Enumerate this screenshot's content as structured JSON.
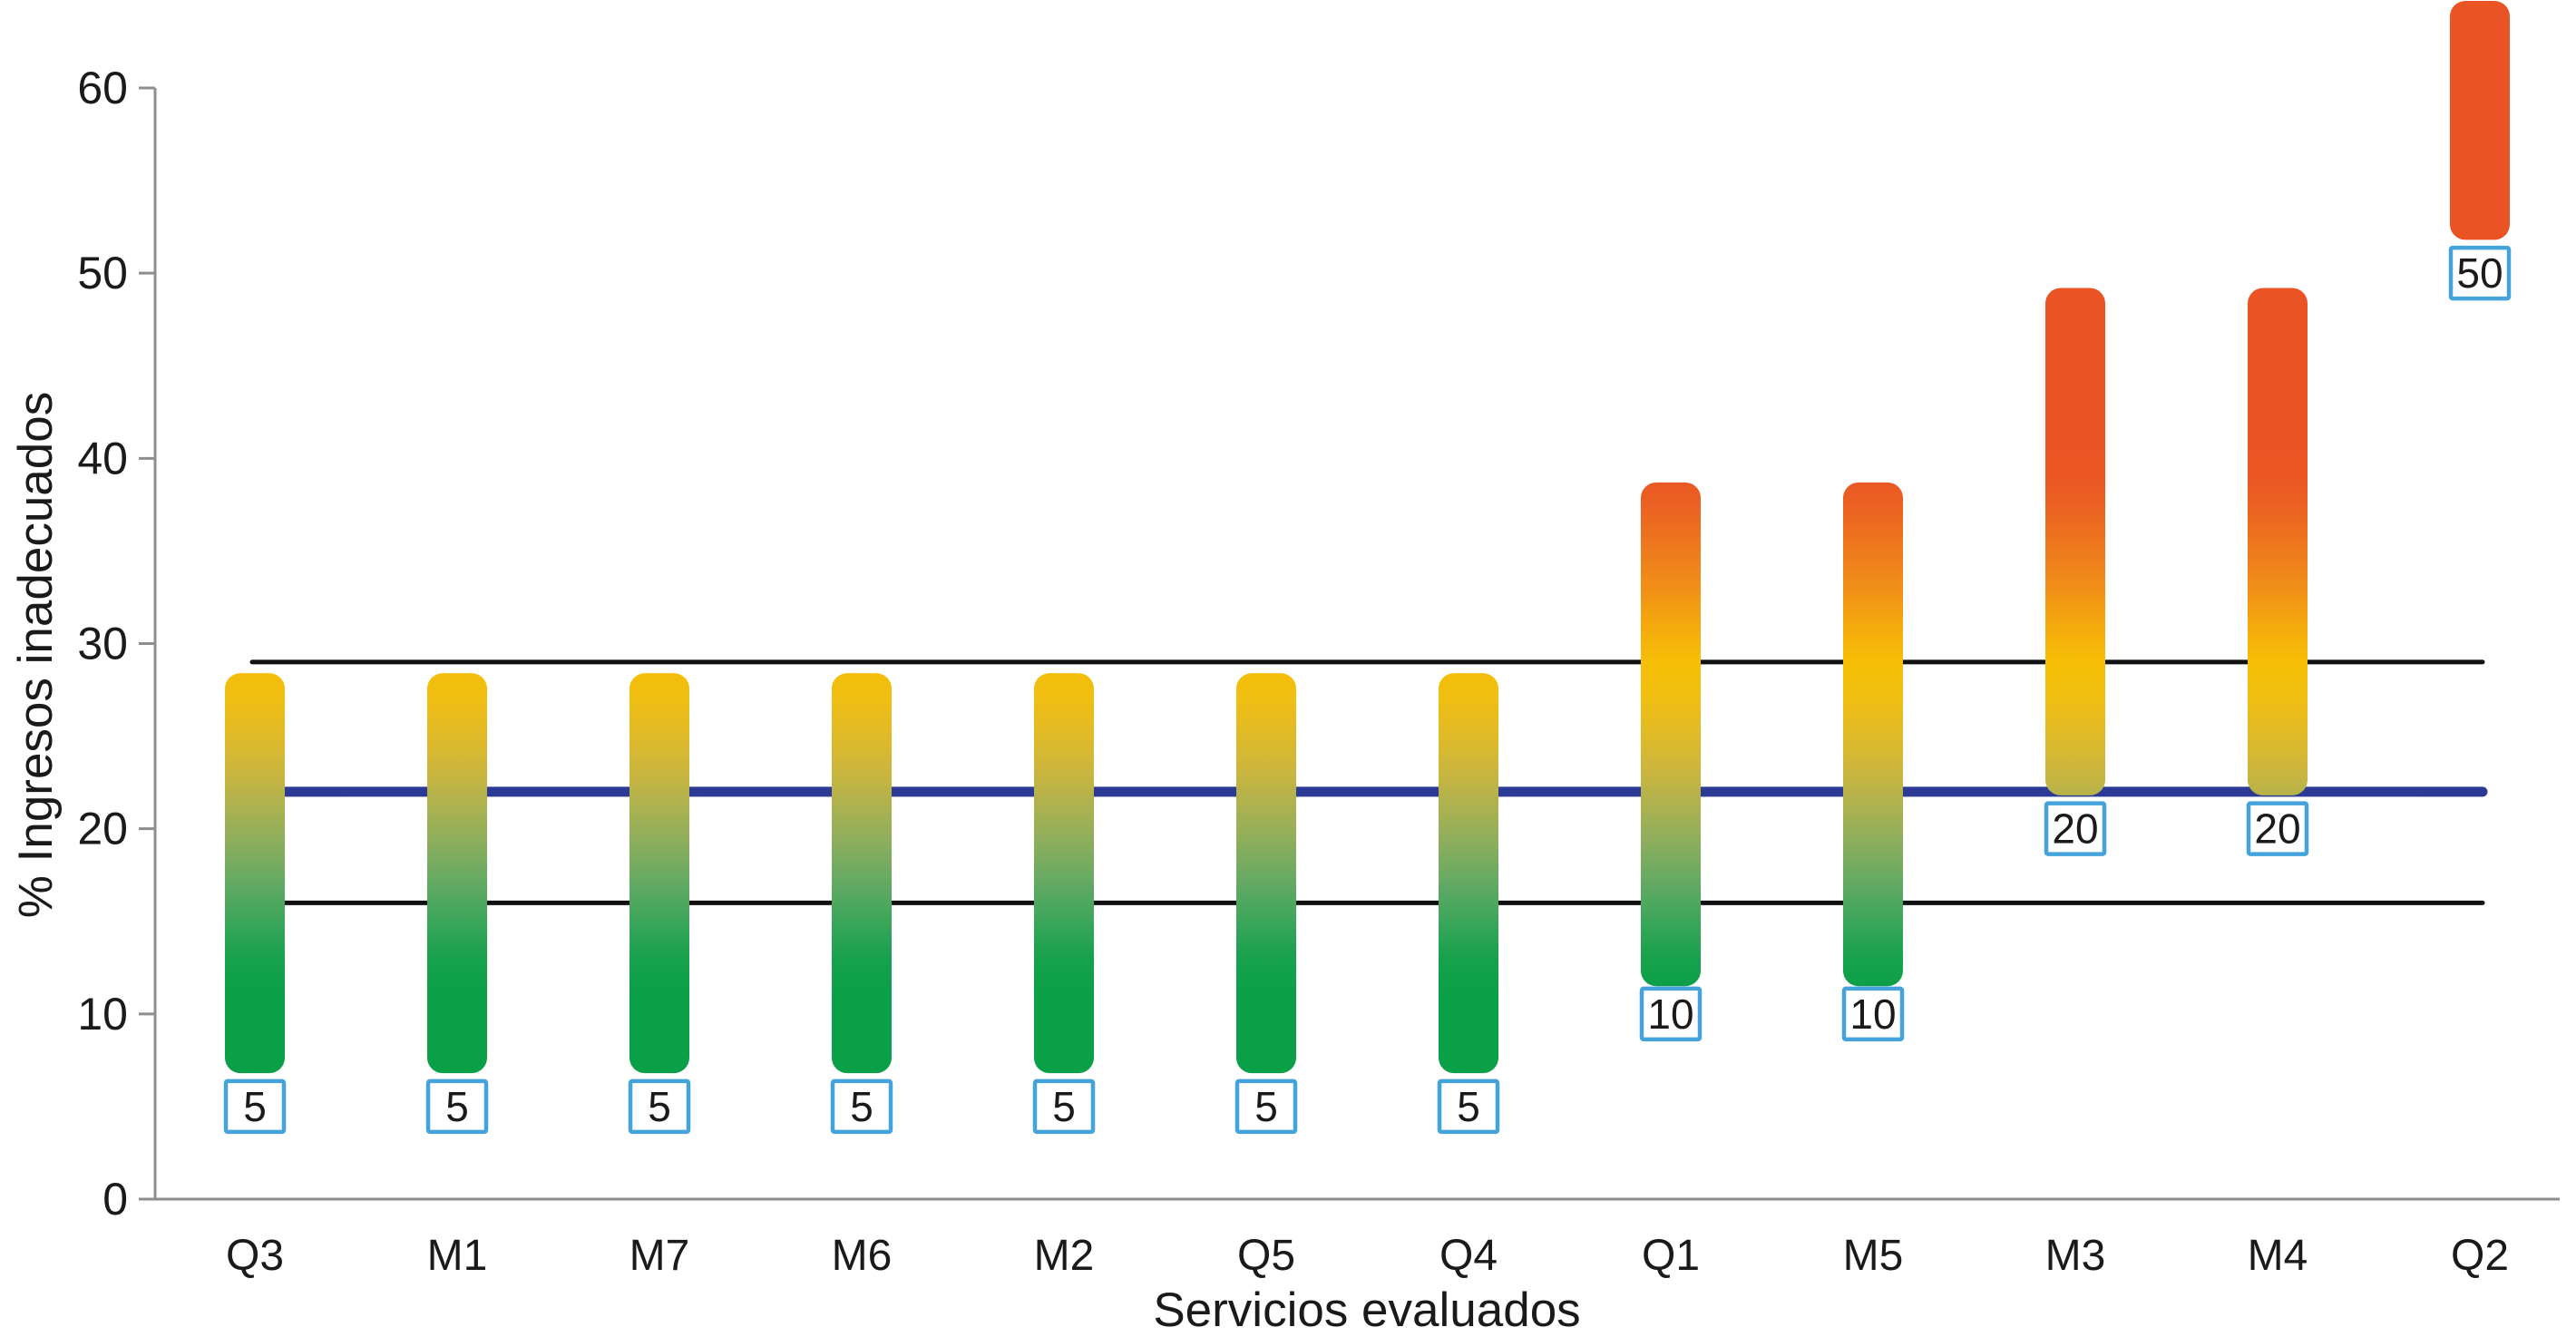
{
  "chart_data": {
    "type": "bar",
    "subtype": "floating-range-bars-with-value-gradient",
    "title": "",
    "xlabel": "Servicios evaluados",
    "ylabel": "% Ingresos inadecuados",
    "categories": [
      "Q3",
      "M1",
      "M7",
      "M6",
      "M2",
      "Q5",
      "Q4",
      "Q1",
      "M5",
      "M3",
      "M4",
      "Q2"
    ],
    "bars": [
      {
        "category": "Q3",
        "label": "5",
        "low": 6.8,
        "high": 28.4,
        "clipped_top": false
      },
      {
        "category": "M1",
        "label": "5",
        "low": 6.8,
        "high": 28.4,
        "clipped_top": false
      },
      {
        "category": "M7",
        "label": "5",
        "low": 6.8,
        "high": 28.4,
        "clipped_top": false
      },
      {
        "category": "M6",
        "label": "5",
        "low": 6.8,
        "high": 28.4,
        "clipped_top": false
      },
      {
        "category": "M2",
        "label": "5",
        "low": 6.8,
        "high": 28.4,
        "clipped_top": false
      },
      {
        "category": "Q5",
        "label": "5",
        "low": 6.8,
        "high": 28.4,
        "clipped_top": false
      },
      {
        "category": "Q4",
        "label": "5",
        "low": 6.8,
        "high": 28.4,
        "clipped_top": false
      },
      {
        "category": "Q1",
        "label": "10",
        "low": 11.5,
        "high": 38.7,
        "clipped_top": false
      },
      {
        "category": "M5",
        "label": "10",
        "low": 11.5,
        "high": 38.7,
        "clipped_top": false
      },
      {
        "category": "M3",
        "label": "20",
        "low": 21.8,
        "high": 49.2,
        "clipped_top": false
      },
      {
        "category": "M4",
        "label": "20",
        "low": 21.8,
        "high": 49.2,
        "clipped_top": false
      },
      {
        "category": "Q2",
        "label": "50",
        "low": 51.8,
        "high": 64.7,
        "clipped_top": true
      }
    ],
    "reference_lines": [
      {
        "name": "upper-limit-line",
        "value": 29,
        "color": "#111111",
        "width": 5
      },
      {
        "name": "mean-line",
        "value": 22,
        "color": "#2B3A94",
        "width": 11
      },
      {
        "name": "lower-limit-line",
        "value": 16,
        "color": "#111111",
        "width": 5
      }
    ],
    "y_axis": {
      "min": 0,
      "max": 65,
      "ticks": [
        0,
        10,
        20,
        30,
        40,
        50,
        60
      ]
    },
    "grid": false,
    "legend": false,
    "colors": {
      "axis": "#8E8E8E",
      "text": "#1A1A1A",
      "label_box_fill": "#FFFFFF",
      "label_box_border": "#44A3DA",
      "bar_gradient_by_value": [
        {
          "v": 0,
          "color": "#0AA048"
        },
        {
          "v": 11,
          "color": "#0AA048"
        },
        {
          "v": 13,
          "color": "#17A14C"
        },
        {
          "v": 15,
          "color": "#3BA65B"
        },
        {
          "v": 17,
          "color": "#62A963"
        },
        {
          "v": 19,
          "color": "#87AD5E"
        },
        {
          "v": 21,
          "color": "#A9B151"
        },
        {
          "v": 23,
          "color": "#C9B53F"
        },
        {
          "v": 25,
          "color": "#E0BA28"
        },
        {
          "v": 27,
          "color": "#EFBE12"
        },
        {
          "v": 29,
          "color": "#F7BF05"
        },
        {
          "v": 31,
          "color": "#F4A90D"
        },
        {
          "v": 33,
          "color": "#F08F17"
        },
        {
          "v": 35,
          "color": "#EE7B1D"
        },
        {
          "v": 37,
          "color": "#EC6521"
        },
        {
          "v": 39,
          "color": "#EA5624"
        },
        {
          "v": 41,
          "color": "#EA5425"
        },
        {
          "v": 65.2,
          "color": "#EA5425"
        }
      ]
    }
  }
}
